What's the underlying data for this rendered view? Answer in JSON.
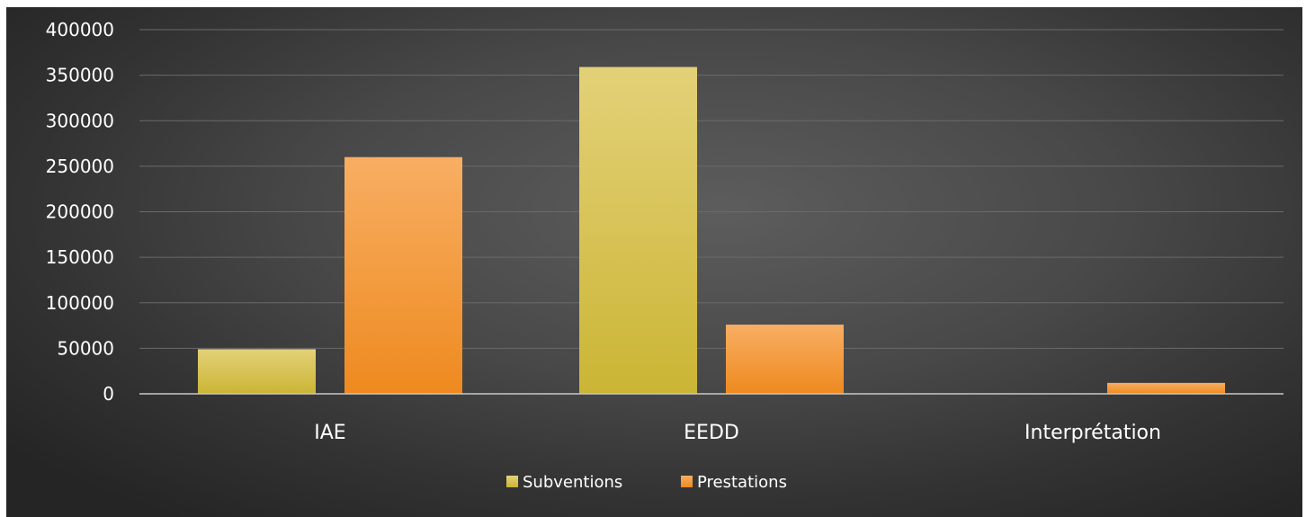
{
  "chart_data": {
    "type": "bar",
    "categories": [
      "IAE",
      "EEDD",
      "Interprétation"
    ],
    "series": [
      {
        "name": "Subventions",
        "values": [
          49000,
          359000,
          0
        ],
        "color": "#d4c24a"
      },
      {
        "name": "Prestations",
        "values": [
          260000,
          76000,
          12000
        ],
        "color": "#f39c3a"
      }
    ],
    "y_ticks": [
      "0",
      "50000",
      "100000",
      "150000",
      "200000",
      "250000",
      "300000",
      "350000",
      "400000"
    ],
    "ylim": [
      0,
      400000
    ],
    "grid": true,
    "legend_position": "bottom-center",
    "background": "#3c3c3c"
  }
}
